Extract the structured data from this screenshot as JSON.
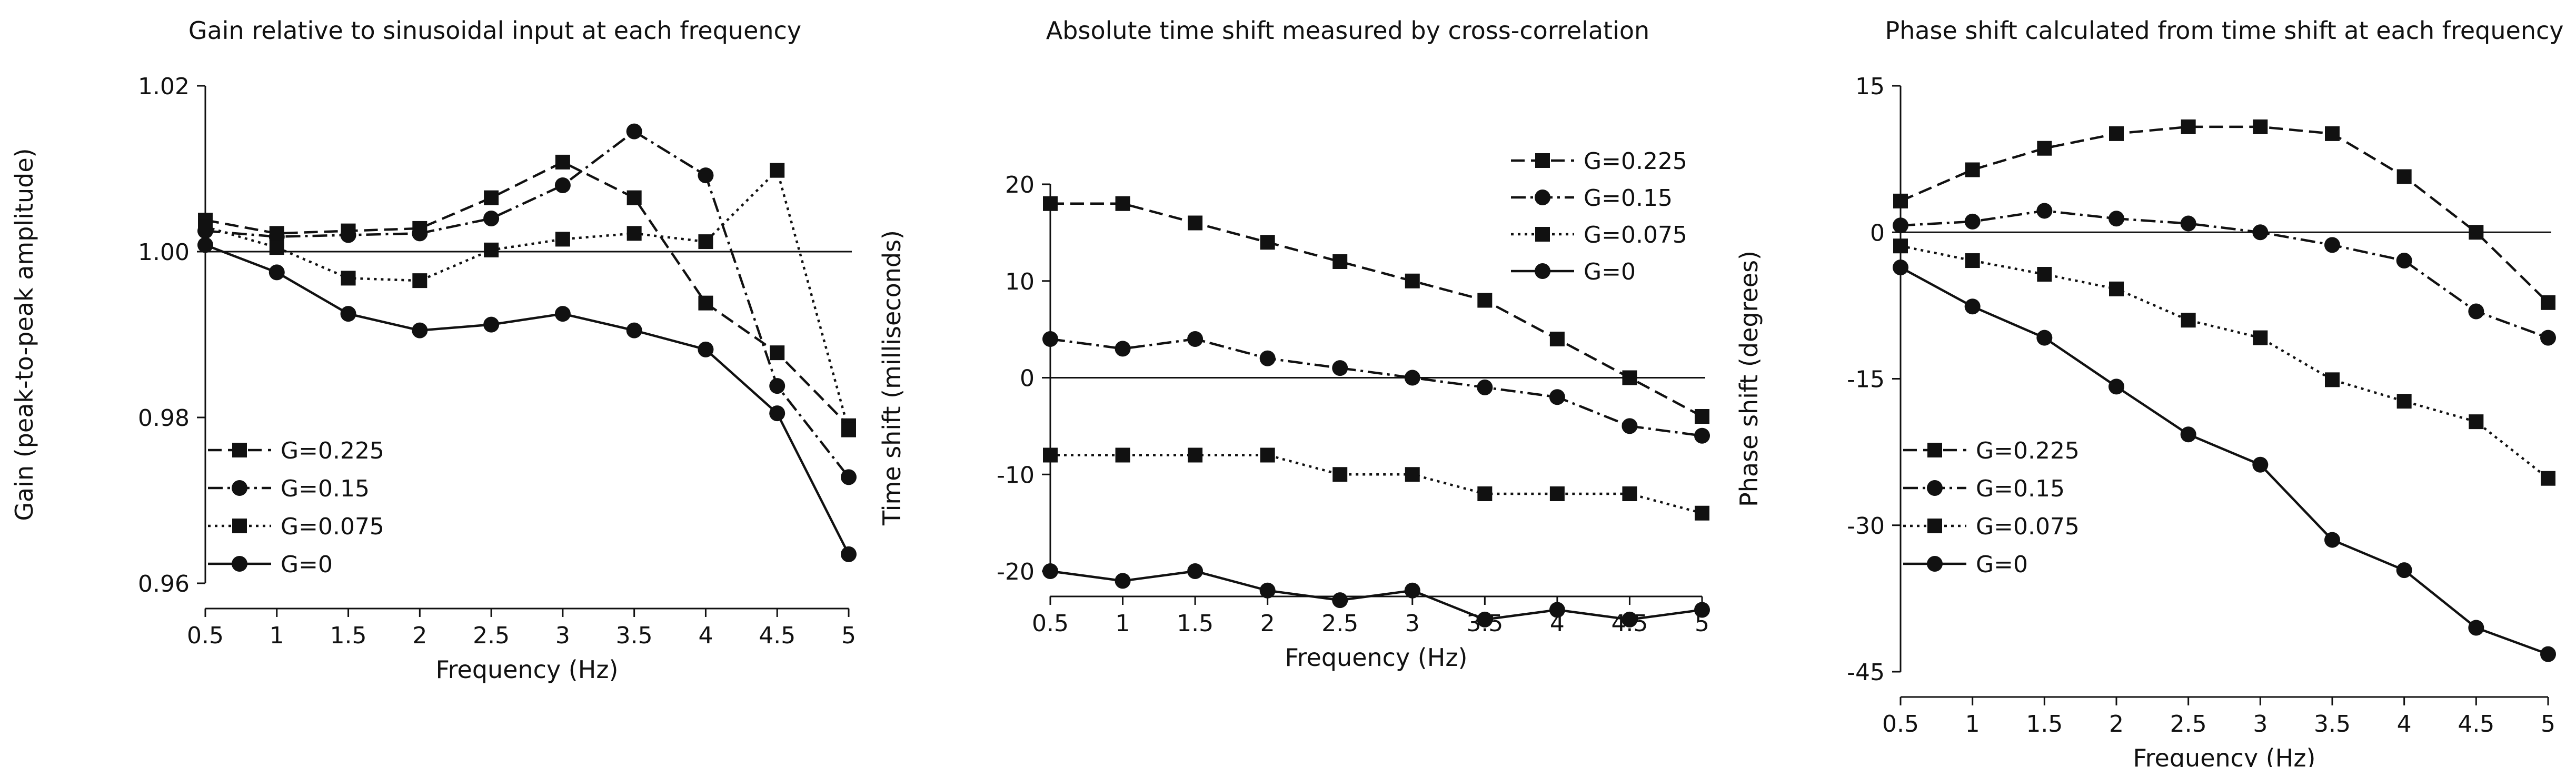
{
  "chart_data": [
    {
      "type": "line",
      "title": "Gain relative to sinusoidal input at each frequency",
      "xlabel": "Frequency (Hz)",
      "ylabel": "Gain (peak-to-peak amplitude)",
      "x": [
        0.5,
        1,
        1.5,
        2,
        2.5,
        3,
        3.5,
        4,
        4.5,
        5
      ],
      "x_tick_labels": [
        "0.5",
        "1",
        "1.5",
        "2",
        "2.5",
        "3",
        "3.5",
        "4",
        "4.5",
        "5"
      ],
      "xlim": [
        0.5,
        5
      ],
      "ylim": [
        0.96,
        1.02
      ],
      "y_ticks": [
        0.96,
        0.98,
        1.0,
        1.02
      ],
      "y_tick_labels": [
        "0.96",
        "0.98",
        "1.00",
        "1.02"
      ],
      "reference_line": 1.0,
      "legend_position": "bottom-left",
      "series": [
        {
          "name": "G=0.225",
          "line_style": "dashed",
          "marker": "square",
          "values": [
            1.0038,
            1.0022,
            1.0025,
            1.0028,
            1.0065,
            1.0108,
            1.0065,
            0.9938,
            0.9878,
            0.979
          ]
        },
        {
          "name": "G=0.15",
          "line_style": "dashdot",
          "marker": "circle",
          "values": [
            1.0025,
            1.0018,
            1.002,
            1.0022,
            1.004,
            1.008,
            1.0145,
            1.0092,
            0.9838,
            0.9728
          ]
        },
        {
          "name": "G=0.075",
          "line_style": "dotted",
          "marker": "square",
          "values": [
            1.003,
            1.0005,
            0.9968,
            0.9965,
            1.0002,
            1.0015,
            1.0022,
            1.0012,
            1.0098,
            0.9785
          ]
        },
        {
          "name": "G=0",
          "line_style": "solid",
          "marker": "circle",
          "values": [
            1.0008,
            0.9975,
            0.9925,
            0.9905,
            0.9912,
            0.9925,
            0.9905,
            0.9882,
            0.9805,
            0.9635
          ]
        }
      ]
    },
    {
      "type": "line",
      "title": "Absolute time shift measured by cross-correlation",
      "xlabel": "Frequency (Hz)",
      "ylabel": "Time shift (milliseconds)",
      "x": [
        0.5,
        1,
        1.5,
        2,
        2.5,
        3,
        3.5,
        4,
        4.5,
        5
      ],
      "x_tick_labels": [
        "0.5",
        "1",
        "1.5",
        "2",
        "2.5",
        "3",
        "3.5",
        "4",
        "4.5",
        "5"
      ],
      "xlim": [
        0.5,
        5
      ],
      "ylim": [
        -20,
        20
      ],
      "y_ticks": [
        -20,
        -10,
        0,
        10,
        20
      ],
      "y_tick_labels": [
        "-20",
        "-10",
        "0",
        "10",
        "20"
      ],
      "reference_line": 0,
      "legend_position": "top-right",
      "series": [
        {
          "name": "G=0.225",
          "line_style": "dashed",
          "marker": "square",
          "values": [
            18,
            18,
            16,
            14,
            12,
            10,
            8,
            4,
            0,
            -4
          ]
        },
        {
          "name": "G=0.15",
          "line_style": "dashdot",
          "marker": "circle",
          "values": [
            4,
            3,
            4,
            2,
            1,
            0,
            -1,
            -2,
            -5,
            -6
          ]
        },
        {
          "name": "G=0.075",
          "line_style": "dotted",
          "marker": "square",
          "values": [
            -8,
            -8,
            -8,
            -8,
            -10,
            -10,
            -12,
            -12,
            -12,
            -14
          ]
        },
        {
          "name": "G=0",
          "line_style": "solid",
          "marker": "circle",
          "values": [
            -20,
            -21,
            -20,
            -22,
            -23,
            -22,
            -25,
            -24,
            -25,
            -24
          ]
        }
      ]
    },
    {
      "type": "line",
      "title": "Phase shift calculated from time shift at each frequency",
      "xlabel": "Frequency (Hz)",
      "ylabel": "Phase shift (degrees)",
      "x": [
        0.5,
        1,
        1.5,
        2,
        2.5,
        3,
        3.5,
        4,
        4.5,
        5
      ],
      "x_tick_labels": [
        "0.5",
        "1",
        "1.5",
        "2",
        "2.5",
        "3",
        "3.5",
        "4",
        "4.5",
        "5"
      ],
      "xlim": [
        0.5,
        5
      ],
      "ylim": [
        -45,
        15
      ],
      "y_ticks": [
        -45,
        -30,
        -15,
        0,
        15
      ],
      "y_tick_labels": [
        "-45",
        "-30",
        "-15",
        "0",
        "15"
      ],
      "reference_line": 0,
      "legend_position": "bottom-left",
      "series": [
        {
          "name": "G=0.225",
          "line_style": "dashed",
          "marker": "square",
          "values": [
            3.2,
            6.4,
            8.6,
            10.1,
            10.8,
            10.8,
            10.1,
            5.7,
            0,
            -7.2
          ]
        },
        {
          "name": "G=0.15",
          "line_style": "dashdot",
          "marker": "circle",
          "values": [
            0.7,
            1.1,
            2.2,
            1.4,
            0.9,
            0,
            -1.3,
            -2.9,
            -8.1,
            -10.8
          ]
        },
        {
          "name": "G=0.075",
          "line_style": "dotted",
          "marker": "square",
          "values": [
            -1.4,
            -2.9,
            -4.3,
            -5.8,
            -9.0,
            -10.8,
            -15.1,
            -17.3,
            -19.4,
            -25.2
          ]
        },
        {
          "name": "G=0",
          "line_style": "solid",
          "marker": "circle",
          "values": [
            -3.6,
            -7.6,
            -10.8,
            -15.8,
            -20.7,
            -23.8,
            -31.5,
            -34.6,
            -40.5,
            -43.2
          ]
        }
      ]
    }
  ]
}
